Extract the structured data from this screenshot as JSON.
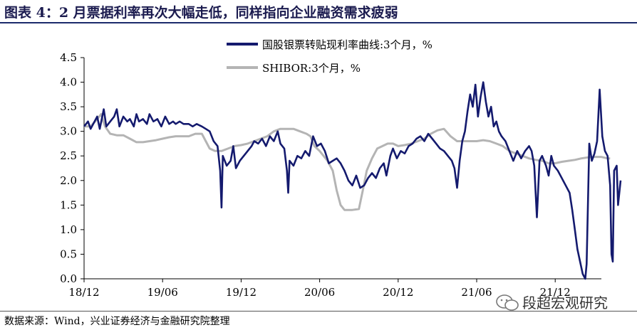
{
  "title": "图表 4：2 月票据利率再次大幅走低，同样指向企业融资需求疲弱",
  "source": "数据来源：Wind，兴业证券经济与金融研究院整理",
  "watermark": "段超宏观研究",
  "colors": {
    "series1": "#141a6e",
    "series2": "#b4b4b4",
    "title": "#1b1b4f"
  },
  "chart_data": {
    "type": "line",
    "ylim": [
      0,
      4.5
    ],
    "yticks": [
      "0.0",
      "0.5",
      "1.0",
      "1.5",
      "2.0",
      "2.5",
      "3.0",
      "3.5",
      "4.0",
      "4.5"
    ],
    "xticks": [
      "18/12",
      "19/06",
      "19/12",
      "20/06",
      "20/12",
      "21/06",
      "21/12"
    ],
    "x_range": [
      0,
      40
    ],
    "legend_position": "top-right",
    "series": [
      {
        "name": "国股银票转贴现利率曲线:3个月，%",
        "points": [
          [
            0,
            3.1
          ],
          [
            0.3,
            3.2
          ],
          [
            0.5,
            3.05
          ],
          [
            0.8,
            3.2
          ],
          [
            1.0,
            3.3
          ],
          [
            1.2,
            3.05
          ],
          [
            1.5,
            3.45
          ],
          [
            1.7,
            3.1
          ],
          [
            2.0,
            3.2
          ],
          [
            2.3,
            3.3
          ],
          [
            2.5,
            3.45
          ],
          [
            2.7,
            3.1
          ],
          [
            3.0,
            3.3
          ],
          [
            3.3,
            3.2
          ],
          [
            3.5,
            3.25
          ],
          [
            3.8,
            3.1
          ],
          [
            4.0,
            3.35
          ],
          [
            4.2,
            3.2
          ],
          [
            4.5,
            3.25
          ],
          [
            4.8,
            3.15
          ],
          [
            5.0,
            3.35
          ],
          [
            5.3,
            3.2
          ],
          [
            5.6,
            3.25
          ],
          [
            5.9,
            3.1
          ],
          [
            6.2,
            3.3
          ],
          [
            6.5,
            3.15
          ],
          [
            6.8,
            3.2
          ],
          [
            7.0,
            3.15
          ],
          [
            7.3,
            3.2
          ],
          [
            7.6,
            3.15
          ],
          [
            8.0,
            3.15
          ],
          [
            8.3,
            3.1
          ],
          [
            8.6,
            3.15
          ],
          [
            9.0,
            3.1
          ],
          [
            9.3,
            3.05
          ],
          [
            9.6,
            3.0
          ],
          [
            9.9,
            2.8
          ],
          [
            10.2,
            2.7
          ],
          [
            10.4,
            2.2
          ],
          [
            10.5,
            1.45
          ],
          [
            10.6,
            2.5
          ],
          [
            10.9,
            2.3
          ],
          [
            11.2,
            2.4
          ],
          [
            11.4,
            2.7
          ],
          [
            11.6,
            2.25
          ],
          [
            11.9,
            2.4
          ],
          [
            12.2,
            2.5
          ],
          [
            12.5,
            2.6
          ],
          [
            12.8,
            2.7
          ],
          [
            13.0,
            2.8
          ],
          [
            13.3,
            2.75
          ],
          [
            13.6,
            2.85
          ],
          [
            13.9,
            2.7
          ],
          [
            14.2,
            2.9
          ],
          [
            14.5,
            2.8
          ],
          [
            14.8,
            3.0
          ],
          [
            15.0,
            2.75
          ],
          [
            15.3,
            2.65
          ],
          [
            15.5,
            2.2
          ],
          [
            15.6,
            1.75
          ],
          [
            15.7,
            2.4
          ],
          [
            16.0,
            2.3
          ],
          [
            16.3,
            2.5
          ],
          [
            16.6,
            2.45
          ],
          [
            16.9,
            2.6
          ],
          [
            17.2,
            2.5
          ],
          [
            17.5,
            2.9
          ],
          [
            17.8,
            2.7
          ],
          [
            18.1,
            2.75
          ],
          [
            18.4,
            2.6
          ],
          [
            18.7,
            2.35
          ],
          [
            19.0,
            2.4
          ],
          [
            19.3,
            2.45
          ],
          [
            19.6,
            2.35
          ],
          [
            19.9,
            2.2
          ],
          [
            20.2,
            2.0
          ],
          [
            20.5,
            1.9
          ],
          [
            20.8,
            2.1
          ],
          [
            21.1,
            1.85
          ],
          [
            21.4,
            1.9
          ],
          [
            21.7,
            2.05
          ],
          [
            22.0,
            2.15
          ],
          [
            22.3,
            2.05
          ],
          [
            22.6,
            2.25
          ],
          [
            22.9,
            2.35
          ],
          [
            23.1,
            2.1
          ],
          [
            23.4,
            2.5
          ],
          [
            23.6,
            2.65
          ],
          [
            23.9,
            2.45
          ],
          [
            24.2,
            2.6
          ],
          [
            24.5,
            2.55
          ],
          [
            24.8,
            2.7
          ],
          [
            25.1,
            2.75
          ],
          [
            25.4,
            2.85
          ],
          [
            25.7,
            2.9
          ],
          [
            26.0,
            2.8
          ],
          [
            26.3,
            2.95
          ],
          [
            26.6,
            2.85
          ],
          [
            26.9,
            2.75
          ],
          [
            27.2,
            2.65
          ],
          [
            27.5,
            2.6
          ],
          [
            27.8,
            2.5
          ],
          [
            28.1,
            2.4
          ],
          [
            28.3,
            2.25
          ],
          [
            28.5,
            1.85
          ],
          [
            28.7,
            2.4
          ],
          [
            28.9,
            2.8
          ],
          [
            29.1,
            3.0
          ],
          [
            29.3,
            3.4
          ],
          [
            29.5,
            3.75
          ],
          [
            29.7,
            3.5
          ],
          [
            29.9,
            3.95
          ],
          [
            30.1,
            3.3
          ],
          [
            30.3,
            3.7
          ],
          [
            30.5,
            4.0
          ],
          [
            30.7,
            3.6
          ],
          [
            30.9,
            3.3
          ],
          [
            31.1,
            3.5
          ],
          [
            31.3,
            3.1
          ],
          [
            31.5,
            3.2
          ],
          [
            31.7,
            3.0
          ],
          [
            31.9,
            2.9
          ],
          [
            32.2,
            2.8
          ],
          [
            32.5,
            2.6
          ],
          [
            32.8,
            2.4
          ],
          [
            33.1,
            2.6
          ],
          [
            33.4,
            2.45
          ],
          [
            33.7,
            2.6
          ],
          [
            34.0,
            2.7
          ],
          [
            34.2,
            2.6
          ],
          [
            34.4,
            2.3
          ],
          [
            34.6,
            1.25
          ],
          [
            34.8,
            2.4
          ],
          [
            35.0,
            2.5
          ],
          [
            35.3,
            2.3
          ],
          [
            35.5,
            2.1
          ],
          [
            35.7,
            2.5
          ],
          [
            35.9,
            2.3
          ],
          [
            36.2,
            2.2
          ],
          [
            36.5,
            2.05
          ],
          [
            36.8,
            1.9
          ],
          [
            37.1,
            1.75
          ],
          [
            37.3,
            1.4
          ],
          [
            37.5,
            1.0
          ],
          [
            37.7,
            0.6
          ],
          [
            37.9,
            0.35
          ],
          [
            38.1,
            0.1
          ],
          [
            38.3,
            0.0
          ],
          [
            38.4,
            0.3
          ],
          [
            38.6,
            2.75
          ],
          [
            38.8,
            2.4
          ],
          [
            39.0,
            2.55
          ],
          [
            39.2,
            2.8
          ],
          [
            39.4,
            3.85
          ],
          [
            39.6,
            2.9
          ],
          [
            39.8,
            2.6
          ],
          [
            40.0,
            2.5
          ],
          [
            40.2,
            1.9
          ],
          [
            40.3,
            0.5
          ],
          [
            40.4,
            0.35
          ],
          [
            40.5,
            2.2
          ],
          [
            40.7,
            2.3
          ],
          [
            40.8,
            1.5
          ],
          [
            41.0,
            2.0
          ]
        ]
      },
      {
        "name": "SHIBOR:3个月，%",
        "points": [
          [
            0,
            3.1
          ],
          [
            0.5,
            3.1
          ],
          [
            1.0,
            3.25
          ],
          [
            1.3,
            3.35
          ],
          [
            1.6,
            3.1
          ],
          [
            2.0,
            2.95
          ],
          [
            2.5,
            2.92
          ],
          [
            3.0,
            2.92
          ],
          [
            3.5,
            2.85
          ],
          [
            4.0,
            2.78
          ],
          [
            4.5,
            2.78
          ],
          [
            5.0,
            2.8
          ],
          [
            5.5,
            2.82
          ],
          [
            6.0,
            2.85
          ],
          [
            6.5,
            2.88
          ],
          [
            7.0,
            2.9
          ],
          [
            7.5,
            2.9
          ],
          [
            8.0,
            2.9
          ],
          [
            8.5,
            2.95
          ],
          [
            9.0,
            2.95
          ],
          [
            9.3,
            2.8
          ],
          [
            9.6,
            2.65
          ],
          [
            10.0,
            2.6
          ],
          [
            10.5,
            2.6
          ],
          [
            11.0,
            2.65
          ],
          [
            11.5,
            2.7
          ],
          [
            12.0,
            2.72
          ],
          [
            12.5,
            2.75
          ],
          [
            13.0,
            2.8
          ],
          [
            13.5,
            2.85
          ],
          [
            14.0,
            2.9
          ],
          [
            14.5,
            3.0
          ],
          [
            15.0,
            3.05
          ],
          [
            15.5,
            3.05
          ],
          [
            16.0,
            3.05
          ],
          [
            16.5,
            3.0
          ],
          [
            17.0,
            2.95
          ],
          [
            17.3,
            2.9
          ],
          [
            17.6,
            2.7
          ],
          [
            18.0,
            2.6
          ],
          [
            18.3,
            2.5
          ],
          [
            18.6,
            2.4
          ],
          [
            19.0,
            2.2
          ],
          [
            19.3,
            1.8
          ],
          [
            19.6,
            1.5
          ],
          [
            19.9,
            1.4
          ],
          [
            20.5,
            1.4
          ],
          [
            21.0,
            1.42
          ],
          [
            21.3,
            1.8
          ],
          [
            21.6,
            2.2
          ],
          [
            22.0,
            2.45
          ],
          [
            22.4,
            2.65
          ],
          [
            22.8,
            2.7
          ],
          [
            23.2,
            2.75
          ],
          [
            23.6,
            2.75
          ],
          [
            24.0,
            2.7
          ],
          [
            24.5,
            2.72
          ],
          [
            25.0,
            2.75
          ],
          [
            25.5,
            2.8
          ],
          [
            26.0,
            2.85
          ],
          [
            26.5,
            2.95
          ],
          [
            27.0,
            3.02
          ],
          [
            27.5,
            3.05
          ],
          [
            28.0,
            2.9
          ],
          [
            28.5,
            2.8
          ],
          [
            29.0,
            2.8
          ],
          [
            29.5,
            2.8
          ],
          [
            30.0,
            2.8
          ],
          [
            30.5,
            2.82
          ],
          [
            31.0,
            2.8
          ],
          [
            31.5,
            2.75
          ],
          [
            32.0,
            2.7
          ],
          [
            32.5,
            2.6
          ],
          [
            33.0,
            2.55
          ],
          [
            33.5,
            2.5
          ],
          [
            34.0,
            2.45
          ],
          [
            34.5,
            2.42
          ],
          [
            35.0,
            2.4
          ],
          [
            35.5,
            2.35
          ],
          [
            36.0,
            2.35
          ],
          [
            36.5,
            2.38
          ],
          [
            37.0,
            2.4
          ],
          [
            37.5,
            2.42
          ],
          [
            38.0,
            2.45
          ],
          [
            38.5,
            2.47
          ],
          [
            39.0,
            2.48
          ],
          [
            39.5,
            2.48
          ],
          [
            40.0,
            2.45
          ],
          [
            40.2,
            2.45
          ]
        ]
      }
    ]
  }
}
